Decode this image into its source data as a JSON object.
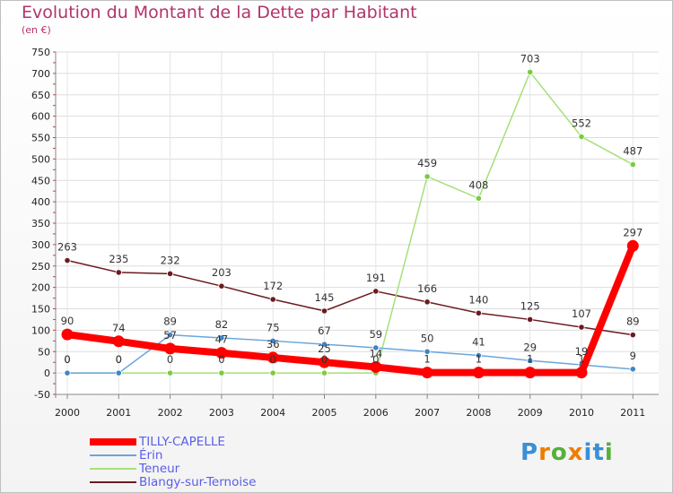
{
  "chart_data": {
    "type": "line",
    "title": "Evolution du Montant de la Dette par Habitant",
    "subtitle": "(en €)",
    "categories": [
      "2000",
      "2001",
      "2002",
      "2003",
      "2004",
      "2005",
      "2006",
      "2007",
      "2008",
      "2009",
      "2010",
      "2011"
    ],
    "ylim": [
      -50,
      750
    ],
    "yticks": [
      -50,
      0,
      50,
      100,
      150,
      200,
      250,
      300,
      350,
      400,
      450,
      500,
      550,
      600,
      650,
      700,
      750
    ],
    "grid": true,
    "legend_position": "bottom-left",
    "series": [
      {
        "name": "TILLY-CAPELLE",
        "color": "#ff0000",
        "values": [
          90,
          74,
          57,
          47,
          36,
          25,
          14,
          1,
          1,
          1,
          1,
          297
        ],
        "labels": [
          "90",
          "74",
          "57",
          "47",
          "36",
          "25",
          "14",
          "1",
          "1",
          "1",
          "1",
          "297"
        ]
      },
      {
        "name": "Érin",
        "color": "#5b9bd5",
        "values": [
          0,
          0,
          89,
          82,
          75,
          67,
          59,
          50,
          41,
          29,
          19,
          9
        ],
        "labels": [
          "0",
          "0",
          "89",
          "82",
          "75",
          "67",
          "59",
          "50",
          "41",
          "29",
          "19",
          "9"
        ]
      },
      {
        "name": "Teneur",
        "color": "#99dd66",
        "values": [
          0,
          0,
          0,
          0,
          0,
          0,
          0,
          459,
          408,
          703,
          552,
          487
        ],
        "labels": [
          "0",
          "0",
          "0",
          "0",
          "0",
          "0",
          "0",
          "459",
          "408",
          "703",
          "552",
          "487"
        ]
      },
      {
        "name": "Blangy-sur-Ternoise",
        "color": "#6b1a1f",
        "values": [
          263,
          235,
          232,
          203,
          172,
          145,
          191,
          166,
          140,
          125,
          107,
          89
        ],
        "labels": [
          "263",
          "235",
          "232",
          "203",
          "172",
          "145",
          "191",
          "166",
          "140",
          "125",
          "107",
          "89"
        ]
      }
    ]
  },
  "logo": {
    "letters": [
      "P",
      "r",
      "o",
      "x",
      "i",
      "t",
      "i"
    ],
    "colors": [
      "#3b8fd6",
      "#ef7d00",
      "#56b03a",
      "#ef7d00",
      "#3b8fd6",
      "#3b8fd6",
      "#56b03a"
    ]
  }
}
